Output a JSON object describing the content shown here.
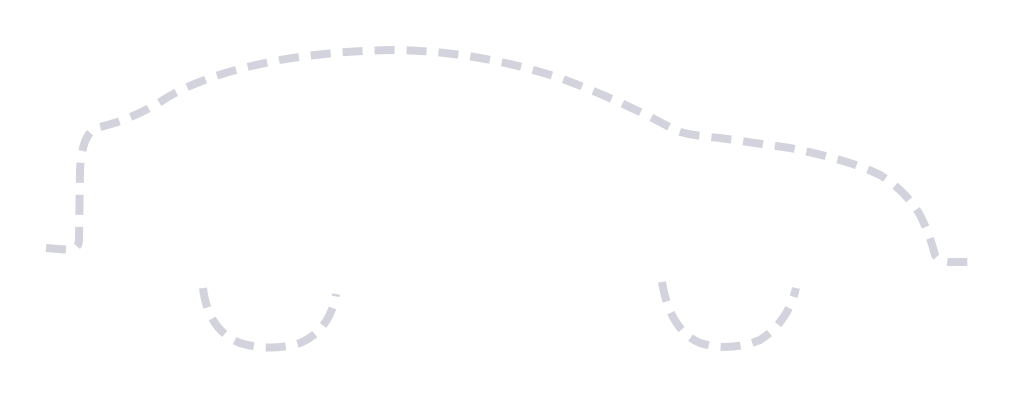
{
  "illustration": {
    "subject": "car-outline",
    "stroke_color": "#d3d3dd",
    "background": "#ffffff",
    "style": "dashed"
  }
}
